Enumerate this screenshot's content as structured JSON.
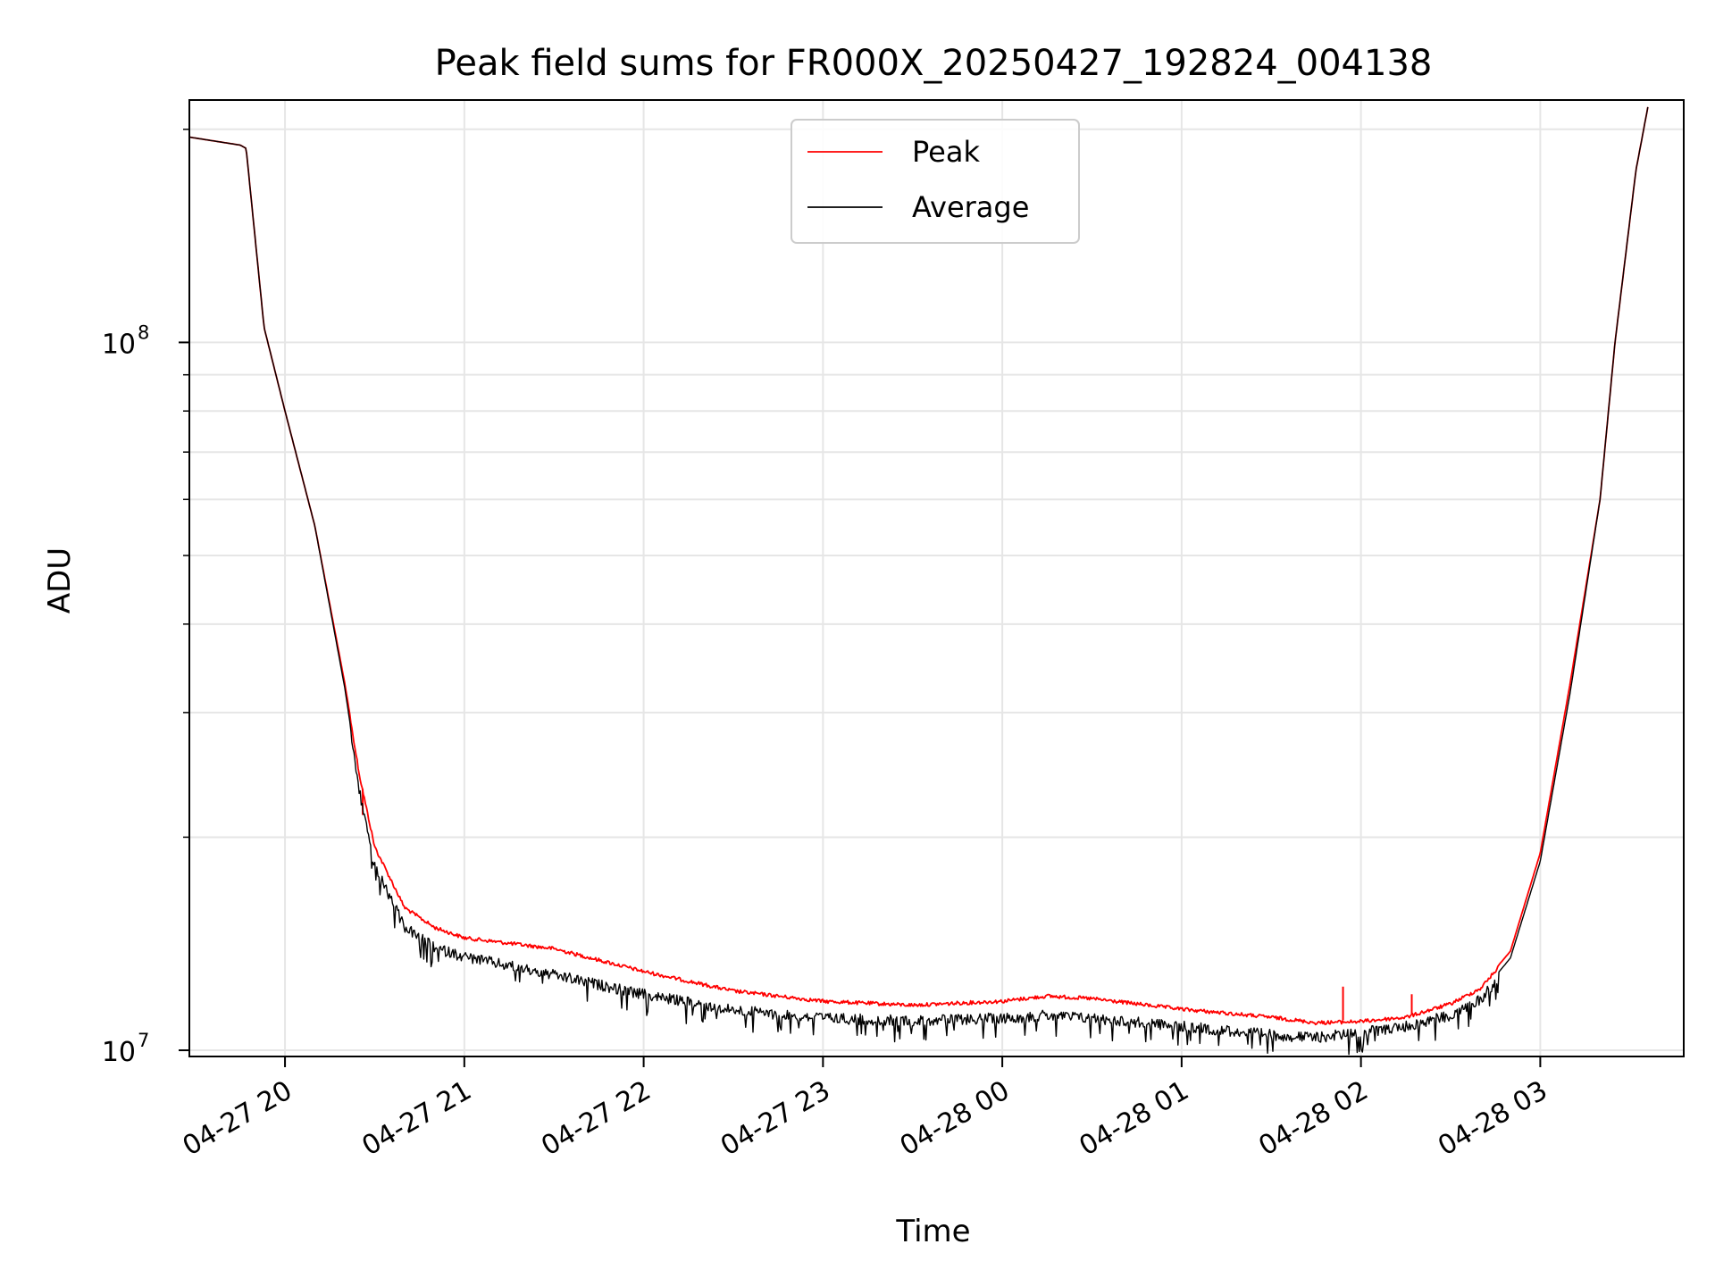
{
  "chart_data": {
    "type": "line",
    "title": "Peak field sums for FR000X_20250427_192824_004138",
    "xlabel": "Time",
    "ylabel": "ADU",
    "y_scale": "log",
    "ylim": [
      9800000,
      220000000
    ],
    "xlim": [
      "2025-04-27 19:28",
      "2025-04-28 03:48"
    ],
    "grid": true,
    "legend_position": "top-center",
    "x_ticks": [
      {
        "t": "2025-04-27 20:00",
        "label": "04-27 20"
      },
      {
        "t": "2025-04-27 21:00",
        "label": "04-27 21"
      },
      {
        "t": "2025-04-27 22:00",
        "label": "04-27 22"
      },
      {
        "t": "2025-04-27 23:00",
        "label": "04-27 23"
      },
      {
        "t": "2025-04-28 00:00",
        "label": "04-28 00"
      },
      {
        "t": "2025-04-28 01:00",
        "label": "04-28 01"
      },
      {
        "t": "2025-04-28 02:00",
        "label": "04-28 02"
      },
      {
        "t": "2025-04-28 03:00",
        "label": "04-28 03"
      }
    ],
    "y_major_ticks": [
      {
        "value": 10000000,
        "base": "10",
        "exp": "7"
      },
      {
        "value": 100000000,
        "base": "10",
        "exp": "8"
      }
    ],
    "y_minor_ticks": [
      20000000,
      30000000,
      40000000,
      50000000,
      60000000,
      70000000,
      80000000,
      90000000,
      200000000
    ],
    "series": [
      {
        "name": "Peak",
        "color": "#ff0000",
        "x": [
          "2025-04-27 19:28",
          "2025-04-27 19:45",
          "2025-04-27 19:47",
          "2025-04-27 19:53",
          "2025-04-27 20:00",
          "2025-04-27 20:10",
          "2025-04-27 20:20",
          "2025-04-27 20:25",
          "2025-04-27 20:30",
          "2025-04-27 20:40",
          "2025-04-27 20:50",
          "2025-04-27 21:00",
          "2025-04-27 21:30",
          "2025-04-27 22:00",
          "2025-04-27 22:30",
          "2025-04-27 23:00",
          "2025-04-27 23:30",
          "2025-04-28 00:00",
          "2025-04-28 00:15",
          "2025-04-28 00:30",
          "2025-04-28 01:00",
          "2025-04-28 01:30",
          "2025-04-28 01:45",
          "2025-04-28 02:00",
          "2025-04-28 02:15",
          "2025-04-28 02:30",
          "2025-04-28 02:40",
          "2025-04-28 02:50",
          "2025-04-28 03:00",
          "2025-04-28 03:10",
          "2025-04-28 03:20",
          "2025-04-28 03:25",
          "2025-04-28 03:32",
          "2025-04-28 03:36"
        ],
        "y": [
          195000000,
          190000000,
          188000000,
          105000000,
          80000000,
          55000000,
          33000000,
          24500000,
          19500000,
          16000000,
          15000000,
          14500000,
          14000000,
          13000000,
          12200000,
          11800000,
          11650000,
          11800000,
          12000000,
          11900000,
          11500000,
          11200000,
          11000000,
          11050000,
          11200000,
          11700000,
          12300000,
          13800000,
          19000000,
          33000000,
          60000000,
          100000000,
          175000000,
          215000000
        ],
        "spikes": [
          {
            "t": "2025-04-28 01:54",
            "value": 12300000
          },
          {
            "t": "2025-04-28 02:17",
            "value": 12000000
          },
          {
            "t": "2025-04-27 20:26",
            "value": 21500000
          }
        ]
      },
      {
        "name": "Average",
        "color": "#000000",
        "x": [
          "2025-04-27 19:28",
          "2025-04-27 19:45",
          "2025-04-27 19:47",
          "2025-04-27 19:53",
          "2025-04-27 20:00",
          "2025-04-27 20:10",
          "2025-04-27 20:20",
          "2025-04-27 20:25",
          "2025-04-27 20:30",
          "2025-04-27 20:40",
          "2025-04-27 20:50",
          "2025-04-27 21:00",
          "2025-04-27 21:30",
          "2025-04-27 22:00",
          "2025-04-27 22:30",
          "2025-04-27 23:00",
          "2025-04-27 23:30",
          "2025-04-28 00:00",
          "2025-04-28 00:15",
          "2025-04-28 00:30",
          "2025-04-28 01:00",
          "2025-04-28 01:30",
          "2025-04-28 01:45",
          "2025-04-28 02:00",
          "2025-04-28 02:15",
          "2025-04-28 02:30",
          "2025-04-28 02:40",
          "2025-04-28 02:50",
          "2025-04-28 03:00",
          "2025-04-28 03:10",
          "2025-04-28 03:20",
          "2025-04-28 03:25",
          "2025-04-28 03:32",
          "2025-04-28 03:36"
        ],
        "y": [
          195000000,
          190000000,
          188000000,
          105000000,
          80000000,
          55000000,
          32500000,
          23500000,
          18500000,
          15200000,
          14200000,
          13800000,
          13000000,
          12200000,
          11600000,
          11300000,
          11200000,
          11300000,
          11400000,
          11300000,
          11000000,
          10700000,
          10600000,
          10800000,
          11000000,
          11400000,
          12000000,
          13500000,
          18500000,
          32000000,
          60000000,
          100000000,
          175000000,
          215000000
        ]
      }
    ]
  }
}
